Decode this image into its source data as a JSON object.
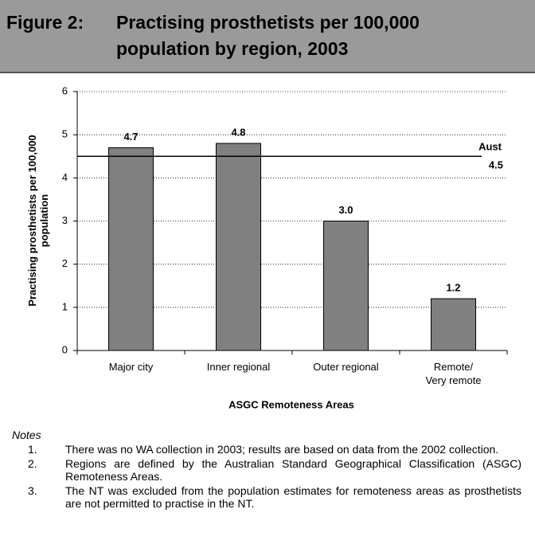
{
  "header": {
    "figure": "Figure 2:",
    "title": "Practising prosthetists per 100,000 population by region, 2003"
  },
  "chart_data": {
    "type": "bar",
    "categories": [
      "Major city",
      "Inner regional",
      "Outer regional",
      "Remote/\nVery remote"
    ],
    "values": [
      4.7,
      4.8,
      3,
      1.2
    ],
    "value_labels": [
      "4.7",
      "4.8",
      "3.0",
      "1.2"
    ],
    "color": "#808080",
    "ylim": [
      0,
      6
    ],
    "yticks": [
      0,
      1,
      2,
      3,
      4,
      5,
      6
    ],
    "grid": true,
    "ylabel": "Practising prosthetists per 100,000\npopulation",
    "xlabel": "ASGC Remoteness Areas",
    "reference_line": {
      "label": "Aust",
      "value": 4.5
    }
  },
  "notes": {
    "heading": "Notes",
    "items": [
      {
        "number": "1.",
        "text": "There was no WA collection in 2003; results are based on data from the 2002 collection."
      },
      {
        "number": "2.",
        "text": "Regions are defined by the Australian Standard Geographical Classification (ASGC) Remoteness Areas."
      },
      {
        "number": "3.",
        "text": "The NT was excluded from the population estimates for remoteness areas as prosthetists are not permitted to practise in the NT."
      }
    ]
  }
}
